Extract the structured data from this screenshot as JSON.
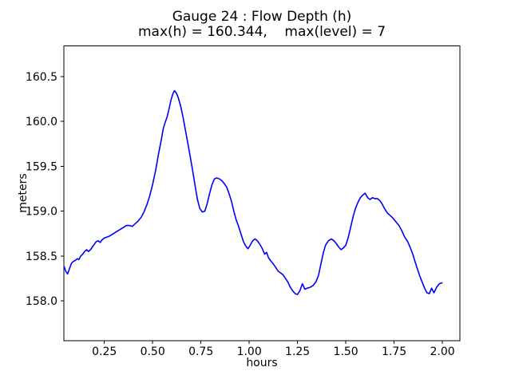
{
  "figure": {
    "background_color": "#ffffff",
    "text_color": "#000000"
  },
  "chart_data": {
    "type": "line",
    "title": "Gauge 24 : Flow Depth (h)",
    "subtitle": "max(h) = 160.344,    max(level) = 7",
    "xlabel": "hours",
    "ylabel": "meters",
    "annotations": {
      "max_h": 160.344,
      "max_level": 7
    },
    "line_color": "#0000ff",
    "line_width": 1.6,
    "grid": false,
    "legend": "none",
    "xlim": [
      0.0405,
      2.0905
    ],
    "ylim": [
      157.553,
      160.842
    ],
    "x_ticks": [
      0.25,
      0.5,
      0.75,
      1.0,
      1.25,
      1.5,
      1.75,
      2.0
    ],
    "x_tick_labels": [
      "0.25",
      "0.50",
      "0.75",
      "1.00",
      "1.25",
      "1.50",
      "1.75",
      "2.00"
    ],
    "y_ticks": [
      158.0,
      158.5,
      159.0,
      159.5,
      160.0,
      160.5
    ],
    "y_tick_labels": [
      "158.0",
      "158.5",
      "159.0",
      "159.5",
      "160.0",
      "160.5"
    ],
    "points": [
      [
        0.042,
        158.38
      ],
      [
        0.05,
        158.33
      ],
      [
        0.06,
        158.3
      ],
      [
        0.07,
        158.36
      ],
      [
        0.08,
        158.42
      ],
      [
        0.09,
        158.44
      ],
      [
        0.1,
        158.45
      ],
      [
        0.11,
        158.47
      ],
      [
        0.118,
        158.46
      ],
      [
        0.128,
        158.5
      ],
      [
        0.138,
        158.52
      ],
      [
        0.148,
        158.55
      ],
      [
        0.158,
        158.57
      ],
      [
        0.168,
        158.55
      ],
      [
        0.178,
        158.57
      ],
      [
        0.188,
        158.6
      ],
      [
        0.198,
        158.63
      ],
      [
        0.208,
        158.66
      ],
      [
        0.218,
        158.67
      ],
      [
        0.228,
        158.65
      ],
      [
        0.238,
        158.68
      ],
      [
        0.25,
        158.7
      ],
      [
        0.262,
        158.71
      ],
      [
        0.275,
        158.72
      ],
      [
        0.29,
        158.74
      ],
      [
        0.305,
        158.76
      ],
      [
        0.32,
        158.78
      ],
      [
        0.335,
        158.8
      ],
      [
        0.35,
        158.82
      ],
      [
        0.365,
        158.84
      ],
      [
        0.38,
        158.84
      ],
      [
        0.395,
        158.83
      ],
      [
        0.41,
        158.86
      ],
      [
        0.425,
        158.89
      ],
      [
        0.44,
        158.93
      ],
      [
        0.455,
        158.99
      ],
      [
        0.47,
        159.07
      ],
      [
        0.485,
        159.17
      ],
      [
        0.5,
        159.3
      ],
      [
        0.515,
        159.45
      ],
      [
        0.53,
        159.63
      ],
      [
        0.545,
        159.8
      ],
      [
        0.555,
        159.92
      ],
      [
        0.565,
        159.99
      ],
      [
        0.575,
        160.05
      ],
      [
        0.585,
        160.14
      ],
      [
        0.595,
        160.24
      ],
      [
        0.605,
        160.31
      ],
      [
        0.613,
        160.344
      ],
      [
        0.622,
        160.32
      ],
      [
        0.632,
        160.27
      ],
      [
        0.645,
        160.17
      ],
      [
        0.658,
        160.04
      ],
      [
        0.67,
        159.9
      ],
      [
        0.682,
        159.76
      ],
      [
        0.695,
        159.6
      ],
      [
        0.708,
        159.44
      ],
      [
        0.72,
        159.28
      ],
      [
        0.732,
        159.13
      ],
      [
        0.744,
        159.03
      ],
      [
        0.757,
        158.99
      ],
      [
        0.77,
        159.0
      ],
      [
        0.782,
        159.08
      ],
      [
        0.795,
        159.2
      ],
      [
        0.808,
        159.3
      ],
      [
        0.82,
        159.36
      ],
      [
        0.832,
        159.37
      ],
      [
        0.845,
        159.36
      ],
      [
        0.858,
        159.34
      ],
      [
        0.87,
        159.31
      ],
      [
        0.883,
        159.27
      ],
      [
        0.895,
        159.2
      ],
      [
        0.908,
        159.11
      ],
      [
        0.92,
        159.0
      ],
      [
        0.933,
        158.9
      ],
      [
        0.945,
        158.83
      ],
      [
        0.958,
        158.74
      ],
      [
        0.97,
        158.66
      ],
      [
        0.982,
        158.61
      ],
      [
        0.993,
        158.58
      ],
      [
        1.005,
        158.62
      ],
      [
        1.018,
        158.67
      ],
      [
        1.03,
        158.69
      ],
      [
        1.042,
        158.67
      ],
      [
        1.055,
        158.63
      ],
      [
        1.068,
        158.58
      ],
      [
        1.08,
        158.52
      ],
      [
        1.09,
        158.54
      ],
      [
        1.1,
        158.48
      ],
      [
        1.113,
        158.44
      ],
      [
        1.125,
        158.41
      ],
      [
        1.138,
        158.37
      ],
      [
        1.15,
        158.33
      ],
      [
        1.163,
        158.31
      ],
      [
        1.175,
        158.29
      ],
      [
        1.188,
        158.25
      ],
      [
        1.2,
        158.21
      ],
      [
        1.213,
        158.15
      ],
      [
        1.225,
        158.11
      ],
      [
        1.238,
        158.08
      ],
      [
        1.25,
        158.07
      ],
      [
        1.262,
        158.11
      ],
      [
        1.275,
        158.19
      ],
      [
        1.288,
        158.13
      ],
      [
        1.3,
        158.14
      ],
      [
        1.315,
        158.15
      ],
      [
        1.33,
        158.17
      ],
      [
        1.345,
        158.21
      ],
      [
        1.358,
        158.28
      ],
      [
        1.37,
        158.4
      ],
      [
        1.383,
        158.53
      ],
      [
        1.395,
        158.62
      ],
      [
        1.41,
        158.67
      ],
      [
        1.425,
        158.69
      ],
      [
        1.438,
        158.67
      ],
      [
        1.45,
        158.64
      ],
      [
        1.463,
        158.6
      ],
      [
        1.475,
        158.57
      ],
      [
        1.488,
        158.59
      ],
      [
        1.5,
        158.62
      ],
      [
        1.512,
        158.7
      ],
      [
        1.525,
        158.82
      ],
      [
        1.538,
        158.94
      ],
      [
        1.55,
        159.03
      ],
      [
        1.563,
        159.1
      ],
      [
        1.575,
        159.15
      ],
      [
        1.588,
        159.18
      ],
      [
        1.6,
        159.2
      ],
      [
        1.613,
        159.15
      ],
      [
        1.625,
        159.13
      ],
      [
        1.638,
        159.15
      ],
      [
        1.65,
        159.14
      ],
      [
        1.663,
        159.14
      ],
      [
        1.675,
        159.12
      ],
      [
        1.688,
        159.08
      ],
      [
        1.7,
        159.03
      ],
      [
        1.715,
        158.98
      ],
      [
        1.73,
        158.95
      ],
      [
        1.745,
        158.92
      ],
      [
        1.76,
        158.88
      ],
      [
        1.775,
        158.84
      ],
      [
        1.79,
        158.78
      ],
      [
        1.805,
        158.71
      ],
      [
        1.82,
        158.66
      ],
      [
        1.832,
        158.6
      ],
      [
        1.845,
        158.53
      ],
      [
        1.858,
        158.44
      ],
      [
        1.87,
        158.36
      ],
      [
        1.882,
        158.28
      ],
      [
        1.895,
        158.21
      ],
      [
        1.908,
        158.14
      ],
      [
        1.92,
        158.09
      ],
      [
        1.932,
        158.08
      ],
      [
        1.944,
        158.14
      ],
      [
        1.956,
        158.09
      ],
      [
        1.97,
        158.15
      ],
      [
        1.984,
        158.19
      ],
      [
        1.998,
        158.2
      ]
    ]
  }
}
